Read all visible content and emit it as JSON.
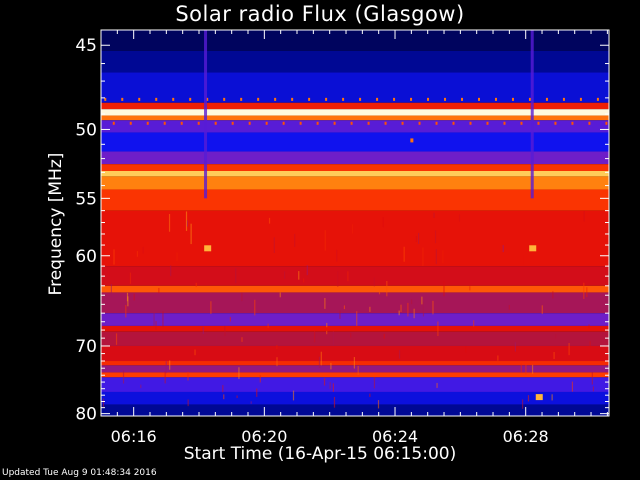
{
  "chart_data": {
    "type": "heatmap",
    "title": "Solar radio Flux (Glasgow)",
    "xlabel": "Start Time (16-Apr-15 06:15:00)",
    "ylabel": "Frequency [MHz]",
    "x_ticks": [
      "06:16",
      "06:20",
      "06:24",
      "06:28"
    ],
    "x_tick_minutes": [
      16,
      20,
      24,
      28
    ],
    "x_range_minutes": [
      15,
      30.55
    ],
    "y_ticks": [
      45,
      50,
      55,
      60,
      70,
      80
    ],
    "y_range": [
      44.2,
      80.4
    ],
    "y_scale": "reciprocal",
    "colormap": "blue-red-yellow-white",
    "bands": [
      {
        "f": [
          44.2,
          45.3
        ],
        "intensity": 0.05
      },
      {
        "f": [
          45.3,
          46.5
        ],
        "intensity": 0.1
      },
      {
        "f": [
          46.5,
          48.3
        ],
        "intensity": 0.17
      },
      {
        "f": [
          48.3,
          48.7
        ],
        "intensity": 0.55
      },
      {
        "f": [
          48.7,
          49.1
        ],
        "intensity": 0.97
      },
      {
        "f": [
          49.1,
          49.4
        ],
        "intensity": 0.7
      },
      {
        "f": [
          49.4,
          50.2
        ],
        "intensity": 0.28
      },
      {
        "f": [
          50.2,
          51.5
        ],
        "intensity": 0.2
      },
      {
        "f": [
          51.5,
          52.4
        ],
        "intensity": 0.3
      },
      {
        "f": [
          52.4,
          52.9
        ],
        "intensity": 0.6
      },
      {
        "f": [
          52.9,
          53.3
        ],
        "intensity": 0.84
      },
      {
        "f": [
          53.3,
          54.3
        ],
        "intensity": 0.72
      },
      {
        "f": [
          54.3,
          56.0
        ],
        "intensity": 0.6
      },
      {
        "f": [
          56.0,
          61.0
        ],
        "intensity": 0.52
      },
      {
        "f": [
          61.0,
          63.0
        ],
        "intensity": 0.47
      },
      {
        "f": [
          63.0,
          63.7
        ],
        "intensity": 0.66
      },
      {
        "f": [
          63.7,
          66.0
        ],
        "intensity": 0.38
      },
      {
        "f": [
          66.0,
          67.5
        ],
        "intensity": 0.3
      },
      {
        "f": [
          67.5,
          68.2
        ],
        "intensity": 0.52
      },
      {
        "f": [
          68.2,
          70.0
        ],
        "intensity": 0.4
      },
      {
        "f": [
          70.0,
          72.0
        ],
        "intensity": 0.48
      },
      {
        "f": [
          72.0,
          72.6
        ],
        "intensity": 0.58
      },
      {
        "f": [
          72.6,
          73.6
        ],
        "intensity": 0.35
      },
      {
        "f": [
          73.6,
          74.3
        ],
        "intensity": 0.62
      },
      {
        "f": [
          74.3,
          76.5
        ],
        "intensity": 0.26
      },
      {
        "f": [
          76.5,
          78.5
        ],
        "intensity": 0.18
      },
      {
        "f": [
          78.5,
          80.4
        ],
        "intensity": 0.1
      }
    ],
    "vertical_features": [
      {
        "t": 18.2,
        "type": "dip"
      },
      {
        "t": 24.5,
        "type": "bright_dot",
        "f": 50.7
      },
      {
        "t": 28.2,
        "type": "dip"
      }
    ],
    "bright_spots": [
      {
        "t": 18.25,
        "f": 59.3
      },
      {
        "t": 28.2,
        "f": 59.3
      },
      {
        "t": 28.4,
        "f": 77.3
      }
    ]
  },
  "footer": "Updated Tue Aug  9 01:48:34 2016"
}
